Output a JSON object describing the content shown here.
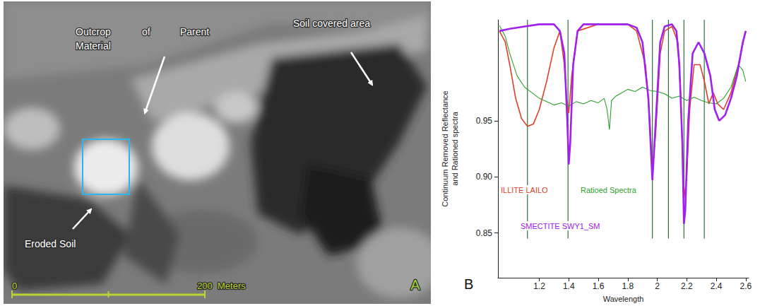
{
  "image_panel": {
    "letter": "A",
    "labels": {
      "outcrop": [
        "Outcrop",
        "of",
        "Parent",
        "Material"
      ],
      "soil_covered": "Soil covered area",
      "eroded": "Eroded Soil"
    },
    "scale_bar": {
      "min": 0,
      "max": 200,
      "unit": "Meters"
    }
  },
  "chart_data": {
    "type": "line",
    "panel_label": "B",
    "x_label": "Wavelength",
    "y_label": "Continuum Removed Reflectance and Rationed spectra",
    "xlim": [
      0.92,
      2.62
    ],
    "xticks": [
      1.2,
      1.4,
      1.6,
      1.8,
      2,
      2.2,
      2.4,
      2.6
    ],
    "ylim": [
      0.81,
      1.04
    ],
    "yticks": [
      0.85,
      {
        "value": 0.9,
        "label": "0.90"
      },
      0.95
    ],
    "grid": false,
    "series": [
      {
        "name": "ILLITE LAILO",
        "color": "#e0402a",
        "x": [
          0.93,
          0.97,
          1.0,
          1.04,
          1.08,
          1.12,
          1.16,
          1.2,
          1.25,
          1.3,
          1.34,
          1.37,
          1.39,
          1.4,
          1.42,
          1.46,
          1.6,
          1.8,
          1.86,
          1.92,
          1.95,
          1.967,
          1.99,
          2.02,
          2.05,
          2.1,
          2.14,
          2.16,
          2.181,
          2.2,
          2.22,
          2.25,
          2.29,
          2.32,
          2.35,
          2.38,
          2.41,
          2.45,
          2.5,
          2.55,
          2.6
        ],
        "values": [
          1.03,
          1.02,
          1.0,
          0.97,
          0.952,
          0.945,
          0.947,
          0.96,
          0.985,
          1.015,
          1.03,
          1.0,
          0.962,
          0.957,
          0.99,
          1.03,
          1.036,
          1.036,
          1.03,
          1.0,
          0.95,
          0.905,
          0.94,
          1.01,
          1.03,
          1.034,
          1.02,
          0.97,
          0.88,
          0.9,
          0.96,
          1.0,
          1.0,
          0.985,
          0.965,
          0.975,
          0.965,
          0.96,
          0.975,
          1.0,
          1.03
        ]
      },
      {
        "name": "Ratioed Spectra",
        "color": "#2ca02c",
        "x": [
          0.93,
          0.97,
          1.0,
          1.05,
          1.1,
          1.15,
          1.2,
          1.25,
          1.3,
          1.35,
          1.4,
          1.45,
          1.5,
          1.55,
          1.6,
          1.64,
          1.66,
          1.676,
          1.69,
          1.72,
          1.76,
          1.8,
          1.85,
          1.9,
          1.95,
          2.0,
          2.05,
          2.1,
          2.15,
          2.2,
          2.25,
          2.3,
          2.35,
          2.4,
          2.45,
          2.5,
          2.55,
          2.58,
          2.6
        ],
        "values": [
          1.035,
          1.025,
          1.01,
          0.99,
          0.98,
          0.975,
          0.97,
          0.967,
          0.964,
          0.966,
          0.963,
          0.967,
          0.965,
          0.968,
          0.966,
          0.97,
          0.96,
          0.942,
          0.968,
          0.972,
          0.975,
          0.978,
          0.976,
          0.98,
          0.977,
          0.976,
          0.974,
          0.97,
          0.972,
          0.968,
          0.971,
          0.968,
          0.966,
          0.965,
          0.97,
          0.98,
          1.0,
          0.995,
          0.985
        ]
      },
      {
        "name": "SMECTITE SWY1_SM",
        "color": "#a020f0",
        "x": [
          0.93,
          1.0,
          1.1,
          1.2,
          1.3,
          1.34,
          1.37,
          1.39,
          1.4,
          1.41,
          1.43,
          1.46,
          1.5,
          1.6,
          1.7,
          1.8,
          1.86,
          1.9,
          1.94,
          1.967,
          1.99,
          2.02,
          2.05,
          2.1,
          2.13,
          2.15,
          2.17,
          2.181,
          2.19,
          2.21,
          2.24,
          2.28,
          2.32,
          2.36,
          2.39,
          2.42,
          2.46,
          2.5,
          2.54,
          2.58,
          2.6
        ],
        "values": [
          1.03,
          1.032,
          1.034,
          1.036,
          1.036,
          1.03,
          1.01,
          0.95,
          0.911,
          0.93,
          1.0,
          1.03,
          1.036,
          1.036,
          1.036,
          1.036,
          1.033,
          1.02,
          0.97,
          0.897,
          0.95,
          1.02,
          1.034,
          1.036,
          1.03,
          1.0,
          0.93,
          0.858,
          0.87,
          0.95,
          1.01,
          1.02,
          1.01,
          0.99,
          0.96,
          0.95,
          0.955,
          0.97,
          0.99,
          1.02,
          1.03
        ]
      }
    ],
    "vlines": {
      "x": [
        1.12,
        1.395,
        1.967,
        2.076,
        2.181,
        2.319
      ],
      "from": 0.845,
      "color": "#2f6f3f"
    }
  }
}
